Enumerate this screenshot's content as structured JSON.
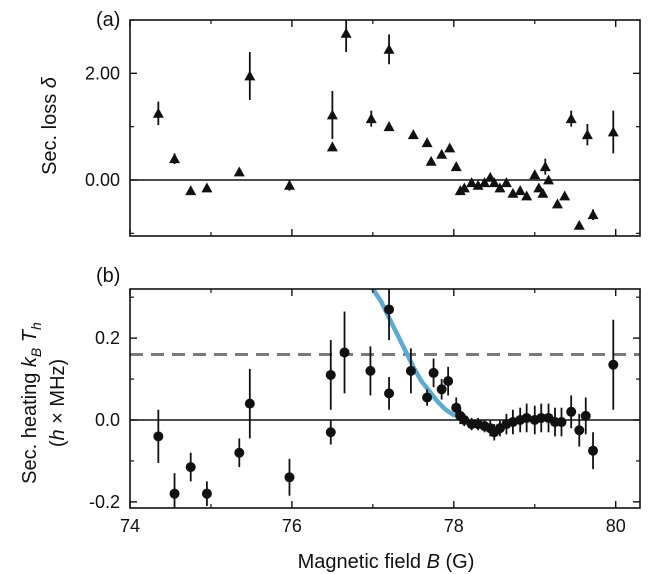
{
  "chart_data": [
    {
      "panel": "(a)",
      "type": "scatter",
      "ylabel": "Sec. loss δ",
      "xlim": [
        74,
        80.3
      ],
      "ylim": [
        -1.05,
        3.0
      ],
      "yticks": [
        0,
        2
      ],
      "ytick_labels": [
        "0.00",
        "2.00"
      ],
      "xticks": [
        74,
        76,
        78,
        80
      ],
      "zero_line": true,
      "marker": "triangle",
      "points": [
        {
          "x": 74.35,
          "y": 1.25,
          "err": 0.22
        },
        {
          "x": 74.55,
          "y": 0.4,
          "err": 0.1
        },
        {
          "x": 74.75,
          "y": -0.2,
          "err": 0.05
        },
        {
          "x": 74.95,
          "y": -0.15,
          "err": 0.05
        },
        {
          "x": 75.35,
          "y": 0.15,
          "err": 0.05
        },
        {
          "x": 75.48,
          "y": 1.95,
          "err": 0.45
        },
        {
          "x": 75.97,
          "y": -0.1,
          "err": 0.1
        },
        {
          "x": 76.5,
          "y": 1.22,
          "err": 0.45
        },
        {
          "x": 76.5,
          "y": 0.62,
          "err": 0.05
        },
        {
          "x": 76.67,
          "y": 2.75,
          "err": 0.35
        },
        {
          "x": 76.98,
          "y": 1.15,
          "err": 0.15
        },
        {
          "x": 77.2,
          "y": 2.45,
          "err": 0.28
        },
        {
          "x": 77.2,
          "y": 1.0,
          "err": 0.05
        },
        {
          "x": 77.5,
          "y": 0.85,
          "err": 0.05
        },
        {
          "x": 77.67,
          "y": 0.7,
          "err": 0.05
        },
        {
          "x": 77.72,
          "y": 0.35,
          "err": 0.05
        },
        {
          "x": 77.85,
          "y": 0.48,
          "err": 0.05
        },
        {
          "x": 77.95,
          "y": 0.6,
          "err": 0.05
        },
        {
          "x": 78.03,
          "y": 0.25,
          "err": 0.05
        },
        {
          "x": 78.08,
          "y": -0.2,
          "err": 0.05
        },
        {
          "x": 78.13,
          "y": -0.15,
          "err": 0.05
        },
        {
          "x": 78.22,
          "y": -0.05,
          "err": 0.05
        },
        {
          "x": 78.3,
          "y": -0.1,
          "err": 0.05
        },
        {
          "x": 78.38,
          "y": -0.05,
          "err": 0.05
        },
        {
          "x": 78.45,
          "y": 0.05,
          "err": 0.05
        },
        {
          "x": 78.5,
          "y": -0.05,
          "err": 0.05
        },
        {
          "x": 78.57,
          "y": -0.15,
          "err": 0.05
        },
        {
          "x": 78.65,
          "y": -0.05,
          "err": 0.05
        },
        {
          "x": 78.73,
          "y": -0.25,
          "err": 0.05
        },
        {
          "x": 78.82,
          "y": -0.2,
          "err": 0.05
        },
        {
          "x": 78.9,
          "y": -0.3,
          "err": 0.05
        },
        {
          "x": 79.0,
          "y": 0.1,
          "err": 0.05
        },
        {
          "x": 79.05,
          "y": -0.15,
          "err": 0.05
        },
        {
          "x": 79.1,
          "y": -0.25,
          "err": 0.05
        },
        {
          "x": 79.13,
          "y": 0.25,
          "err": 0.15
        },
        {
          "x": 79.17,
          "y": 0.0,
          "err": 0.05
        },
        {
          "x": 79.28,
          "y": -0.45,
          "err": 0.05
        },
        {
          "x": 79.37,
          "y": -0.3,
          "err": 0.05
        },
        {
          "x": 79.45,
          "y": 1.15,
          "err": 0.15
        },
        {
          "x": 79.55,
          "y": -0.85,
          "err": 0.05
        },
        {
          "x": 79.65,
          "y": 0.85,
          "err": 0.2
        },
        {
          "x": 79.72,
          "y": -0.65,
          "err": 0.1
        },
        {
          "x": 79.97,
          "y": 0.9,
          "err": 0.4
        }
      ]
    },
    {
      "panel": "(b)",
      "type": "scatter",
      "ylabel": "Sec. heating k_B T_h",
      "ylabel_line2": "(h × MHz)",
      "xlabel": "Magnetic field B (G)",
      "xlim": [
        74,
        80.3
      ],
      "ylim": [
        -0.215,
        0.32
      ],
      "yticks": [
        -0.2,
        0,
        0.2
      ],
      "ytick_labels": [
        "-0.2",
        "0.0",
        "0.2"
      ],
      "xticks": [
        74,
        76,
        78,
        80
      ],
      "xtick_labels": [
        "74",
        "76",
        "78",
        "80"
      ],
      "zero_line": true,
      "dashed_line_y": 0.16,
      "marker": "circle",
      "fit_curve": {
        "color": "#5aaad6",
        "points": [
          [
            77.0,
            0.32
          ],
          [
            77.1,
            0.29
          ],
          [
            77.2,
            0.25
          ],
          [
            77.3,
            0.21
          ],
          [
            77.4,
            0.17
          ],
          [
            77.5,
            0.13
          ],
          [
            77.6,
            0.095
          ],
          [
            77.7,
            0.07
          ],
          [
            77.8,
            0.045
          ],
          [
            77.9,
            0.025
          ],
          [
            78.0,
            0.012
          ]
        ]
      },
      "points": [
        {
          "x": 74.35,
          "y": -0.04,
          "err": 0.065
        },
        {
          "x": 74.55,
          "y": -0.18,
          "err": 0.05
        },
        {
          "x": 74.75,
          "y": -0.115,
          "err": 0.035
        },
        {
          "x": 74.95,
          "y": -0.18,
          "err": 0.03
        },
        {
          "x": 75.35,
          "y": -0.08,
          "err": 0.035
        },
        {
          "x": 75.48,
          "y": 0.04,
          "err": 0.085
        },
        {
          "x": 75.97,
          "y": -0.14,
          "err": 0.045
        },
        {
          "x": 76.48,
          "y": 0.11,
          "err": 0.085
        },
        {
          "x": 76.48,
          "y": -0.03,
          "err": 0.03
        },
        {
          "x": 76.65,
          "y": 0.165,
          "err": 0.1
        },
        {
          "x": 76.97,
          "y": 0.12,
          "err": 0.06
        },
        {
          "x": 77.2,
          "y": 0.27,
          "err": 0.075
        },
        {
          "x": 77.2,
          "y": 0.065,
          "err": 0.04
        },
        {
          "x": 77.47,
          "y": 0.12,
          "err": 0.055
        },
        {
          "x": 77.67,
          "y": 0.055,
          "err": 0.02
        },
        {
          "x": 77.75,
          "y": 0.115,
          "err": 0.035
        },
        {
          "x": 77.85,
          "y": 0.075,
          "err": 0.025
        },
        {
          "x": 77.93,
          "y": 0.095,
          "err": 0.035
        },
        {
          "x": 78.03,
          "y": 0.03,
          "err": 0.025
        },
        {
          "x": 78.08,
          "y": 0.01,
          "err": 0.02
        },
        {
          "x": 78.13,
          "y": 0.0,
          "err": 0.015
        },
        {
          "x": 78.22,
          "y": -0.01,
          "err": 0.015
        },
        {
          "x": 78.3,
          "y": -0.01,
          "err": 0.015
        },
        {
          "x": 78.38,
          "y": -0.015,
          "err": 0.015
        },
        {
          "x": 78.45,
          "y": -0.02,
          "err": 0.02
        },
        {
          "x": 78.5,
          "y": -0.03,
          "err": 0.02
        },
        {
          "x": 78.57,
          "y": -0.02,
          "err": 0.02
        },
        {
          "x": 78.65,
          "y": -0.01,
          "err": 0.025
        },
        {
          "x": 78.73,
          "y": -0.005,
          "err": 0.03
        },
        {
          "x": 78.82,
          "y": 0.0,
          "err": 0.03
        },
        {
          "x": 78.9,
          "y": 0.005,
          "err": 0.035
        },
        {
          "x": 79.0,
          "y": 0.0,
          "err": 0.035
        },
        {
          "x": 79.08,
          "y": 0.005,
          "err": 0.035
        },
        {
          "x": 79.17,
          "y": 0.005,
          "err": 0.035
        },
        {
          "x": 79.25,
          "y": -0.005,
          "err": 0.035
        },
        {
          "x": 79.33,
          "y": -0.005,
          "err": 0.035
        },
        {
          "x": 79.45,
          "y": 0.02,
          "err": 0.04
        },
        {
          "x": 79.55,
          "y": -0.025,
          "err": 0.04
        },
        {
          "x": 79.63,
          "y": 0.01,
          "err": 0.045
        },
        {
          "x": 79.72,
          "y": -0.075,
          "err": 0.045
        },
        {
          "x": 79.97,
          "y": 0.135,
          "err": 0.11
        }
      ]
    }
  ]
}
